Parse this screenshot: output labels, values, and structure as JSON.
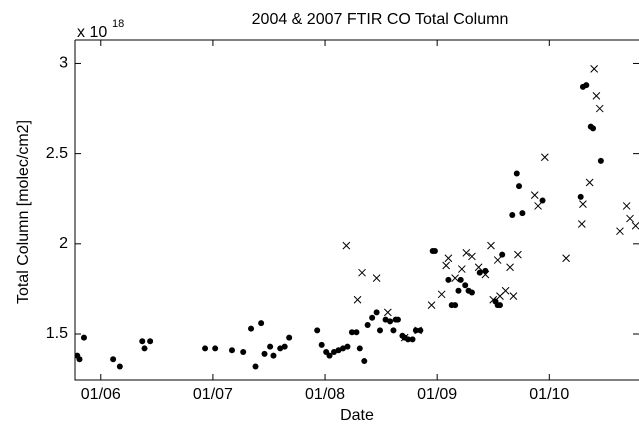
{
  "chart_data": {
    "type": "scatter",
    "title": "2004 & 2007 FTIR CO Total Column",
    "x_label": "Date",
    "y_label": "Total Column [molec/cm2]",
    "y_multiplier": {
      "base": "x 10",
      "exponent": "18"
    },
    "xlim": [
      5.77,
      10.8
    ],
    "ylim": [
      1.245,
      3.13
    ],
    "xticks": [
      {
        "value": 6,
        "label": "01/06"
      },
      {
        "value": 7,
        "label": "01/07"
      },
      {
        "value": 8,
        "label": "01/08"
      },
      {
        "value": 9,
        "label": "01/09"
      },
      {
        "value": 10,
        "label": "01/10"
      }
    ],
    "yticks": [
      1.5,
      2,
      2.5,
      3
    ],
    "grid": false,
    "series": [
      {
        "marker": "dot",
        "color": "#000000",
        "x": [
          5.79,
          5.81,
          5.85,
          6.11,
          6.17,
          6.37,
          6.39,
          6.44,
          6.93,
          7.02,
          7.17,
          7.27,
          7.34,
          7.38,
          7.43,
          7.46,
          7.51,
          7.54,
          7.6,
          7.64,
          7.68,
          7.93,
          7.97,
          8.01,
          8.04,
          8.08,
          8.12,
          8.16,
          8.2,
          8.24,
          8.28,
          8.31,
          8.35,
          8.38,
          8.42,
          8.46,
          8.49,
          8.54,
          8.58,
          8.61,
          8.63,
          8.65,
          8.69,
          8.71,
          8.74,
          8.78,
          8.81,
          8.85,
          8.96,
          8.98,
          9.1,
          9.13,
          9.16,
          9.19,
          9.21,
          9.25,
          9.28,
          9.31,
          9.38,
          9.43,
          9.52,
          9.54,
          9.56,
          9.58,
          9.67,
          9.71,
          9.73,
          9.76,
          9.94,
          10.28,
          10.3,
          10.33,
          10.37,
          10.39,
          10.46
        ],
        "values": [
          1.38,
          1.36,
          1.48,
          1.36,
          1.32,
          1.46,
          1.42,
          1.46,
          1.42,
          1.42,
          1.41,
          1.4,
          1.53,
          1.32,
          1.56,
          1.39,
          1.43,
          1.38,
          1.42,
          1.43,
          1.48,
          1.52,
          1.44,
          1.4,
          1.38,
          1.4,
          1.41,
          1.42,
          1.43,
          1.51,
          1.51,
          1.42,
          1.35,
          1.55,
          1.59,
          1.62,
          1.52,
          1.58,
          1.57,
          1.52,
          1.58,
          1.58,
          1.49,
          1.48,
          1.47,
          1.47,
          1.52,
          1.52,
          1.96,
          1.96,
          1.8,
          1.66,
          1.66,
          1.74,
          1.8,
          1.77,
          1.74,
          1.73,
          1.84,
          1.85,
          1.68,
          1.66,
          1.66,
          1.94,
          2.16,
          2.39,
          2.32,
          2.17,
          2.24,
          2.26,
          2.87,
          2.88,
          2.65,
          2.64,
          2.46
        ]
      },
      {
        "marker": "x",
        "color": "#000000",
        "x": [
          8.19,
          8.29,
          8.33,
          8.46,
          8.56,
          8.71,
          8.83,
          8.95,
          9.04,
          9.08,
          9.1,
          9.16,
          9.22,
          9.26,
          9.31,
          9.37,
          9.43,
          9.48,
          9.5,
          9.54,
          9.56,
          9.61,
          9.65,
          9.68,
          9.72,
          9.87,
          9.9,
          9.96,
          10.15,
          10.29,
          10.3,
          10.36,
          10.4,
          10.42,
          10.45,
          10.63,
          10.69,
          10.72,
          10.77
        ],
        "values": [
          1.99,
          1.69,
          1.84,
          1.81,
          1.62,
          1.48,
          1.52,
          1.66,
          1.72,
          1.88,
          1.92,
          1.81,
          1.86,
          1.95,
          1.93,
          1.87,
          1.83,
          1.99,
          1.69,
          1.91,
          1.71,
          1.74,
          1.87,
          1.71,
          1.94,
          2.27,
          2.21,
          2.48,
          1.92,
          2.11,
          2.22,
          2.34,
          2.97,
          2.82,
          2.75,
          2.07,
          2.21,
          2.14,
          2.1
        ]
      }
    ]
  }
}
